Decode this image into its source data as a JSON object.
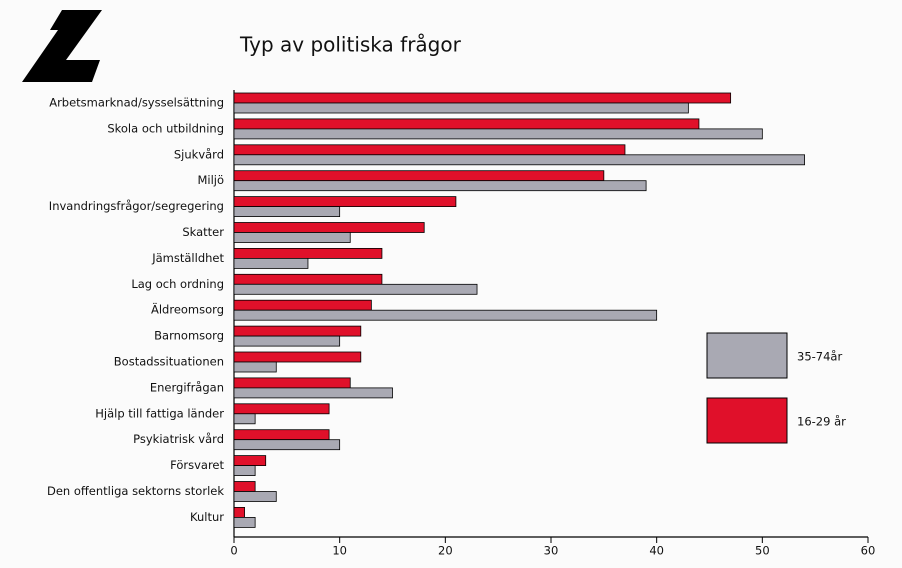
{
  "chart_data": {
    "type": "barh",
    "title": "Typ av politiska frågor",
    "categories": [
      "Arbetsmarknad/sysselsättning",
      "Skola och utbildning",
      "Sjukvård",
      "Miljö",
      "Invandringsfrågor/segregering",
      "Skatter",
      "Jämställdhet",
      "Lag och ordning",
      "Äldreomsorg",
      "Barnomsorg",
      "Bostadssituationen",
      "Energifrågan",
      "Hjälp till fattiga länder",
      "Psykiatrisk vård",
      "Försvaret",
      "Den offentliga sektorns storlek",
      "Kultur"
    ],
    "series": [
      {
        "name": "16-29 år",
        "color": "#e0102a",
        "values": [
          47,
          44,
          37,
          35,
          21,
          18,
          14,
          14,
          13,
          12,
          12,
          11,
          9,
          9,
          3,
          2,
          1
        ]
      },
      {
        "name": "35-74år",
        "color": "#a9a9b3",
        "values": [
          43,
          50,
          54,
          39,
          10,
          11,
          7,
          23,
          40,
          10,
          4,
          15,
          2,
          10,
          2,
          4,
          2
        ]
      }
    ],
    "xlim": [
      0,
      60
    ],
    "xticks": [
      0,
      10,
      20,
      30,
      40,
      50,
      60
    ],
    "legend": "right"
  }
}
